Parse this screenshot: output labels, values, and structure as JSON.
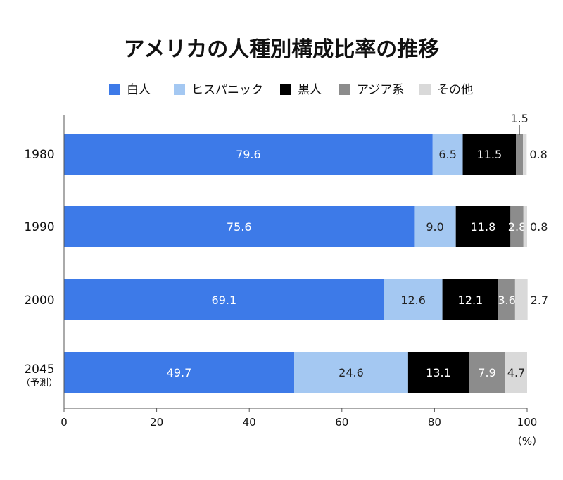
{
  "chart_data": {
    "type": "bar",
    "orientation": "horizontal",
    "stacked": true,
    "title": "アメリカの人種別構成比率の推移",
    "categories": [
      {
        "label": "1980",
        "sub": ""
      },
      {
        "label": "1990",
        "sub": ""
      },
      {
        "label": "2000",
        "sub": ""
      },
      {
        "label": "2045",
        "sub": "（予測）"
      }
    ],
    "series": [
      {
        "name": "白人",
        "color": "#3d7ae8",
        "label_color": "#ffffff",
        "values": [
          79.6,
          75.6,
          69.1,
          49.7
        ]
      },
      {
        "name": "ヒスパニック",
        "color": "#a4c8f2",
        "label_color": "#222222",
        "values": [
          6.5,
          9.0,
          12.6,
          24.6
        ]
      },
      {
        "name": "黒人",
        "color": "#000000",
        "label_color": "#ffffff",
        "values": [
          11.5,
          11.8,
          12.1,
          13.1
        ]
      },
      {
        "name": "アジア系",
        "color": "#8c8c8c",
        "label_color": "#ffffff",
        "values": [
          1.5,
          2.8,
          3.6,
          7.9
        ]
      },
      {
        "name": "その他",
        "color": "#d9d9d9",
        "label_color": "#222222",
        "values": [
          0.8,
          0.8,
          2.7,
          4.7
        ]
      }
    ],
    "value_labels": [
      [
        "79.6",
        "6.5",
        "11.5",
        "1.5",
        "0.8"
      ],
      [
        "75.6",
        "9.0",
        "11.8",
        "2.8",
        "0.8"
      ],
      [
        "69.1",
        "12.6",
        "12.1",
        "3.6",
        "2.7"
      ],
      [
        "49.7",
        "24.6",
        "13.1",
        "7.9",
        "4.7"
      ]
    ],
    "xlim": [
      0,
      100
    ],
    "xticks": [
      "0",
      "20",
      "40",
      "60",
      "80",
      "100"
    ],
    "xunit": "（%）",
    "legend_position": "top",
    "grid": false
  }
}
